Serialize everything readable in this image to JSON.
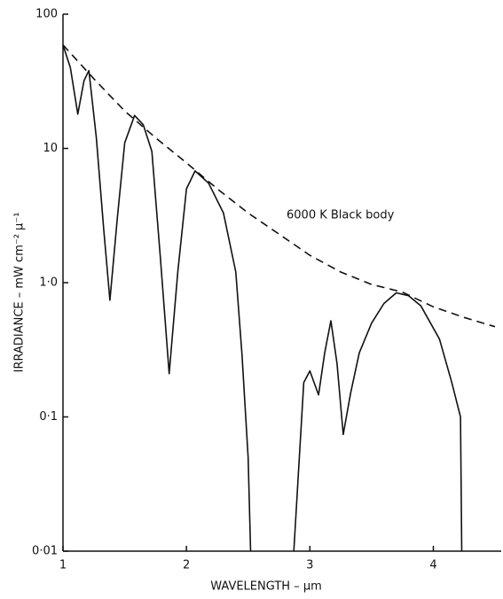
{
  "chart_data": {
    "type": "line",
    "xlabel": "WAVELENGTH – µm",
    "ylabel": "IRRADIANCE – mW cm⁻² µ⁻¹",
    "annotation": "6000 K  Black body",
    "xlim": [
      1,
      4.55
    ],
    "ylim": [
      0.01,
      100
    ],
    "log_y": true,
    "xticks": [
      1,
      2,
      3,
      4
    ],
    "yticks": [
      {
        "value": 0.01,
        "label": "0·01"
      },
      {
        "value": 0.1,
        "label": "0·1"
      },
      {
        "value": 1,
        "label": "1·0"
      },
      10,
      100
    ],
    "series": [
      {
        "color": "#111111",
        "dash": false,
        "x": [
          1.0,
          1.06,
          1.12,
          1.17,
          1.21,
          1.27,
          1.33,
          1.38,
          1.44,
          1.5,
          1.58,
          1.65,
          1.72,
          1.79,
          1.86,
          1.93,
          2.0,
          2.07,
          2.18,
          2.3,
          2.4,
          2.45,
          2.5,
          2.52,
          2.85,
          2.87,
          2.95,
          3.0,
          3.07,
          3.12,
          3.17,
          3.22,
          3.27,
          3.33,
          3.4,
          3.5,
          3.6,
          3.7,
          3.8,
          3.9,
          4.05,
          4.15,
          4.22,
          4.23
        ],
        "values": [
          59,
          40,
          18,
          32,
          38,
          12,
          2.5,
          0.74,
          3,
          11,
          17.6,
          15,
          9.5,
          1.5,
          0.21,
          1.2,
          5,
          6.8,
          5.5,
          3.3,
          1.2,
          0.29,
          0.05,
          0.01,
          null,
          0.01,
          0.18,
          0.22,
          0.146,
          0.3,
          0.52,
          0.25,
          0.074,
          0.15,
          0.3,
          0.5,
          0.7,
          0.84,
          0.8,
          0.67,
          0.38,
          0.18,
          0.1,
          0.01
        ]
      },
      {
        "color": "#111111",
        "dash": true,
        "x": [
          1.0,
          1.25,
          1.5,
          1.75,
          2.0,
          2.25,
          2.5,
          2.75,
          3.0,
          3.25,
          3.5,
          3.75,
          4.0,
          4.25,
          4.5
        ],
        "values": [
          59,
          33,
          19,
          12,
          7.8,
          5.0,
          3.3,
          2.3,
          1.6,
          1.2,
          0.97,
          0.85,
          0.66,
          0.55,
          0.47
        ]
      }
    ]
  }
}
